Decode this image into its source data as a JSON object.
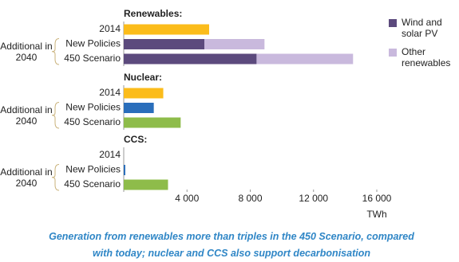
{
  "chart_data": {
    "type": "bar",
    "caption": "Generation from renewables more than triples in the 450 Scenario, compared with today; nuclear and CCS also support decarbonisation",
    "xlabel": "TWh",
    "xlim": [
      0,
      16000
    ],
    "xticks": [
      {
        "value": 4000,
        "label": "4 000"
      },
      {
        "value": 8000,
        "label": "8 000"
      },
      {
        "value": 12000,
        "label": "12 000"
      },
      {
        "value": 16000,
        "label": "16 000"
      }
    ],
    "grid": false,
    "panels": [
      {
        "title": "Renewables:",
        "categories": [
          "2014",
          "New Policies",
          "450 Scenario"
        ],
        "group_label": "Additional in 2040",
        "series": [
          {
            "color": "#fbbc1b",
            "values": [
              5400,
              null,
              null
            ]
          },
          {
            "name": "Wind and solar PV",
            "color": "#5c4a7d",
            "values": [
              null,
              5100,
              8400
            ]
          },
          {
            "name": "Other renewables",
            "color": "#c9b9dd",
            "values": [
              null,
              3800,
              6100
            ]
          }
        ]
      },
      {
        "title": "Nuclear:",
        "categories": [
          "2014",
          "New Policies",
          "450 Scenario"
        ],
        "group_label": "Additional in 2040",
        "series": [
          {
            "colors": [
              "#fbbc1b",
              "#2a6ebb",
              "#8ebc4a"
            ],
            "values": [
              2500,
              1900,
              3600
            ]
          }
        ]
      },
      {
        "title": "CCS:",
        "categories": [
          "2014",
          "New Policies",
          "450 Scenario"
        ],
        "group_label": "Additional in 2040",
        "series": [
          {
            "colors": [
              "#fbbc1b",
              "#2a6ebb",
              "#8ebc4a"
            ],
            "values": [
              0,
              100,
              2800
            ]
          }
        ]
      }
    ]
  }
}
